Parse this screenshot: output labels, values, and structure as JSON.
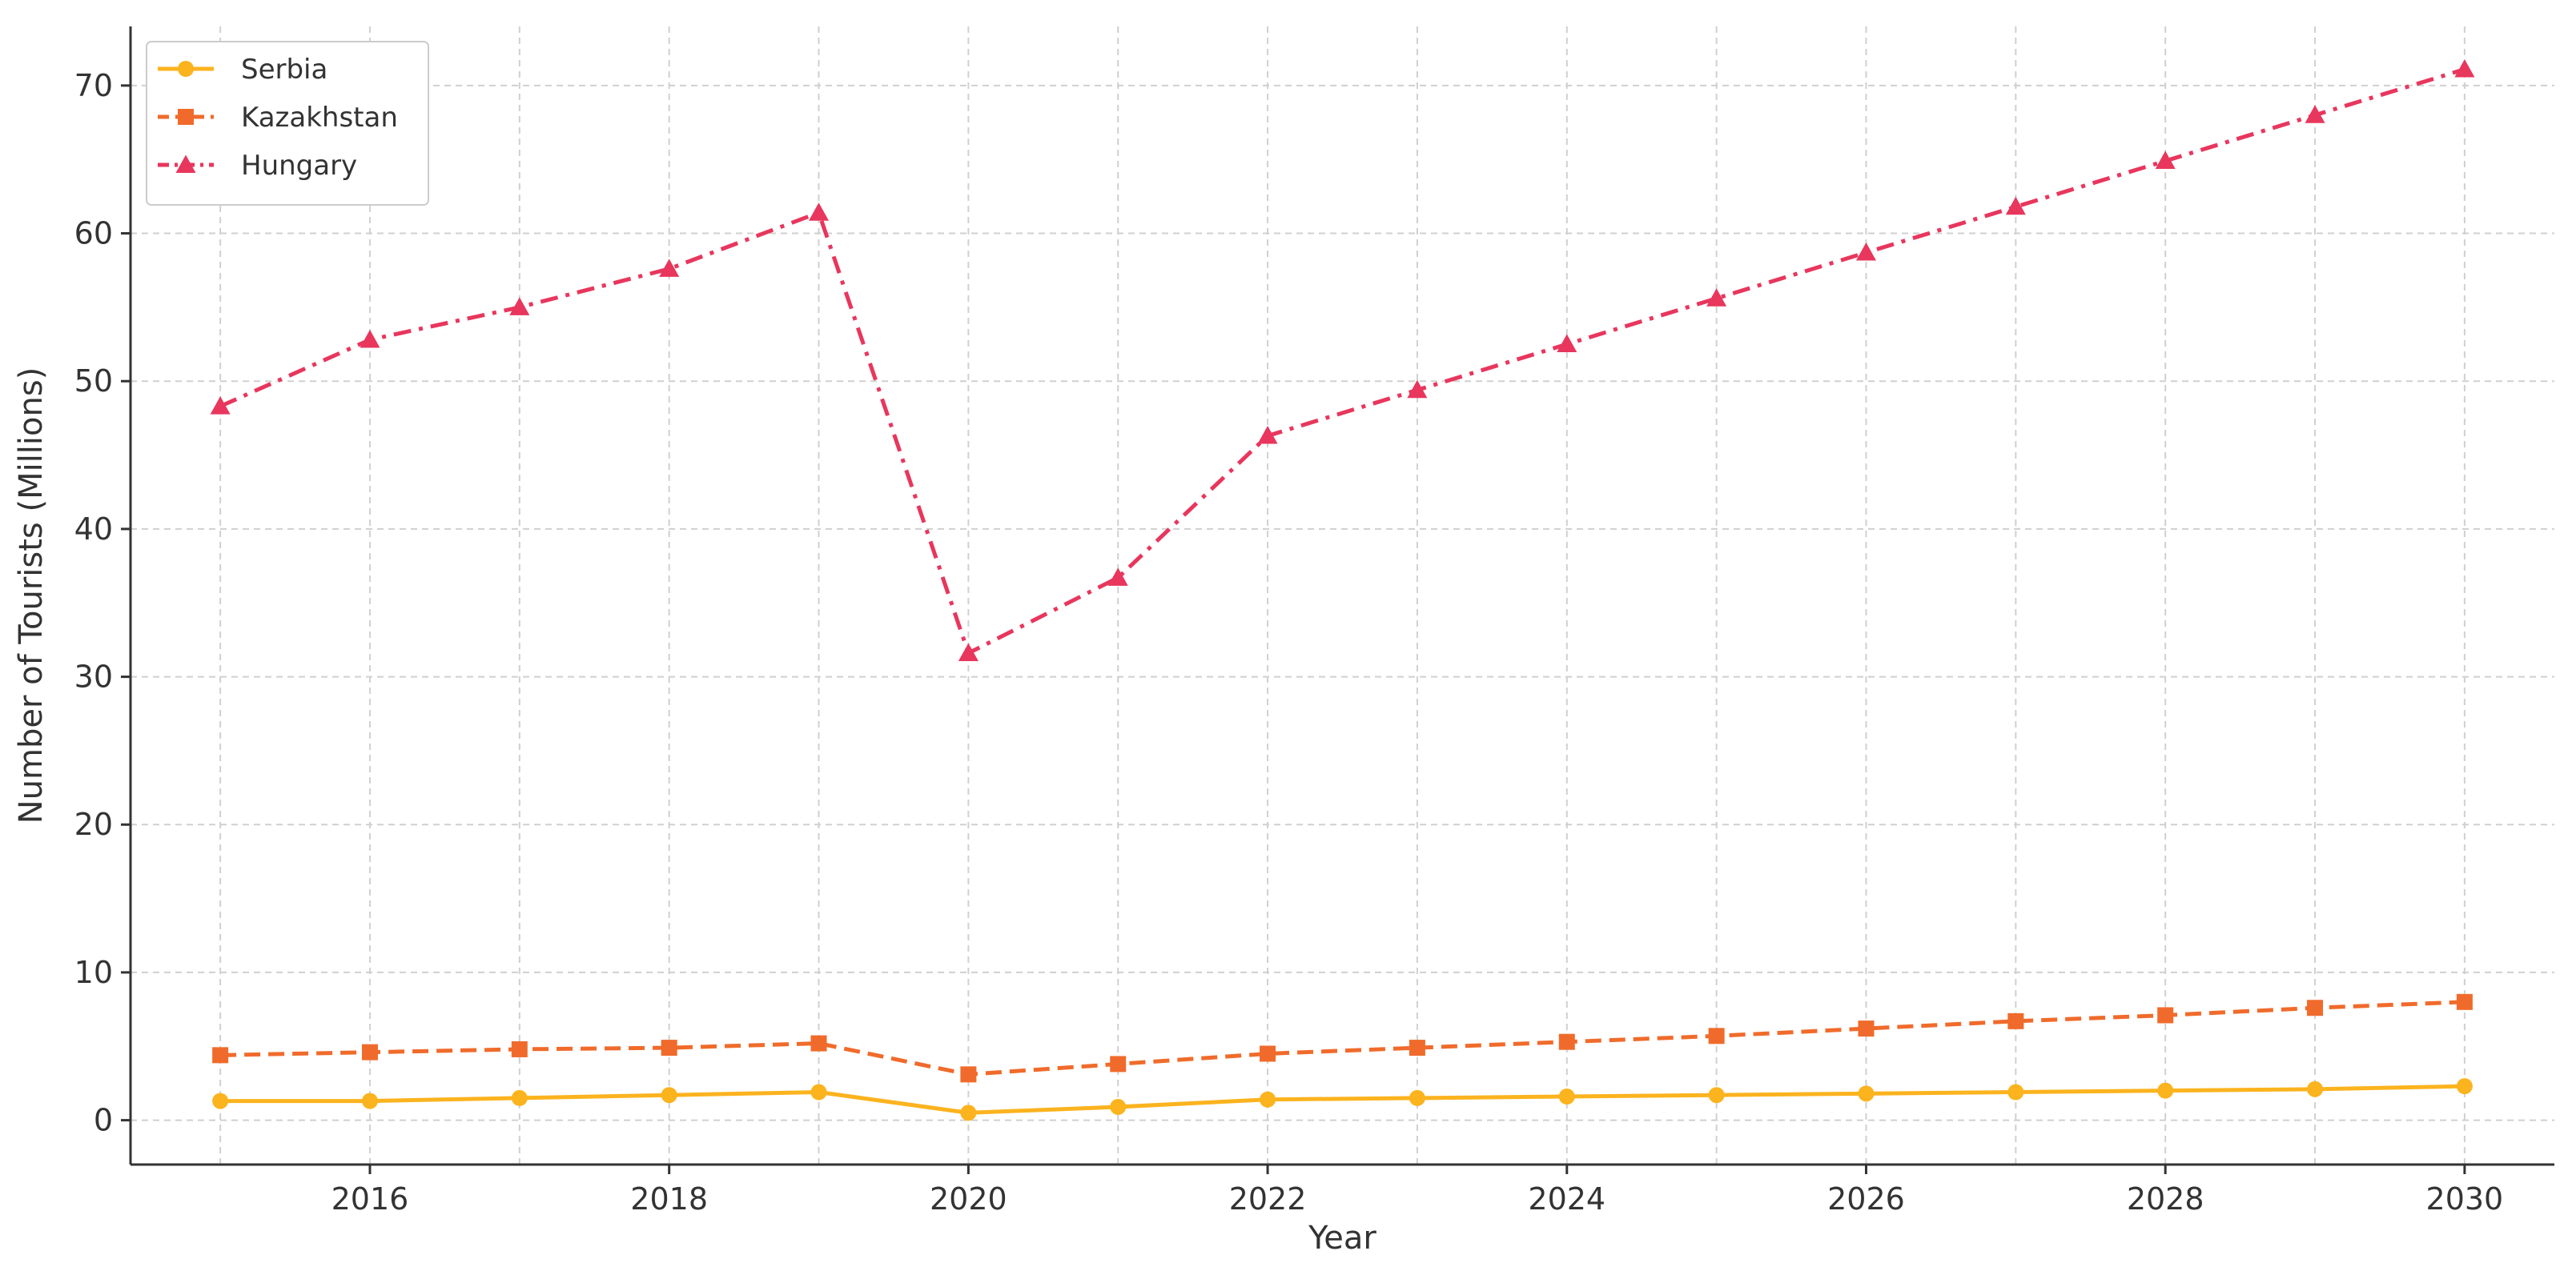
{
  "chart_data": {
    "type": "line",
    "title": "",
    "xlabel": "Year",
    "ylabel": "Number of Tourists (Millions)",
    "x": [
      2015,
      2016,
      2017,
      2018,
      2019,
      2020,
      2021,
      2022,
      2023,
      2024,
      2025,
      2026,
      2027,
      2028,
      2029,
      2030
    ],
    "xlim": [
      2014.4,
      2030.6
    ],
    "ylim": [
      -3,
      74
    ],
    "x_ticks": [
      2016,
      2018,
      2020,
      2022,
      2024,
      2026,
      2028,
      2030
    ],
    "y_ticks": [
      0,
      10,
      20,
      30,
      40,
      50,
      60,
      70
    ],
    "grid": true,
    "legend_position": "top-left",
    "series": [
      {
        "name": "Serbia",
        "color": "#fbb31e",
        "line_style": "solid",
        "marker": "circle",
        "values": [
          1.3,
          1.3,
          1.5,
          1.7,
          1.9,
          0.5,
          0.9,
          1.4,
          1.5,
          1.6,
          1.7,
          1.8,
          1.9,
          2.0,
          2.1,
          2.3
        ]
      },
      {
        "name": "Kazakhstan",
        "color": "#f06b2b",
        "line_style": "dashed",
        "marker": "square",
        "values": [
          4.4,
          4.6,
          4.8,
          4.9,
          5.2,
          3.1,
          3.8,
          4.5,
          4.9,
          5.3,
          5.7,
          6.2,
          6.7,
          7.1,
          7.6,
          8.0
        ]
      },
      {
        "name": "Hungary",
        "color": "#e8365d",
        "line_style": "dashdot",
        "marker": "triangle",
        "values": [
          48.3,
          52.8,
          55.0,
          57.6,
          61.4,
          31.6,
          36.7,
          46.3,
          49.4,
          52.5,
          55.6,
          58.7,
          61.8,
          64.9,
          68.0,
          71.1
        ]
      }
    ]
  }
}
